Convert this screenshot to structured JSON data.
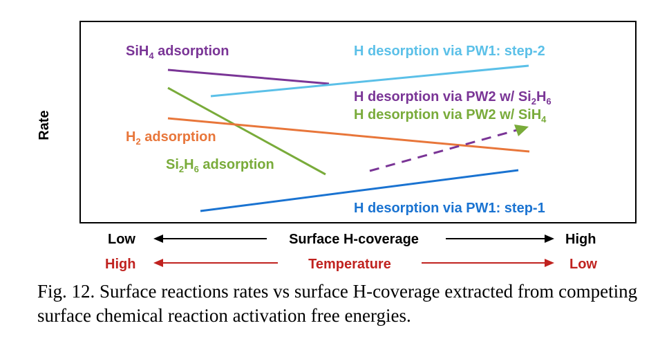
{
  "y_axis_label": "Rate",
  "lines": [
    {
      "id": "sih4-adsorption",
      "label_main": "SiH",
      "label_sub": "4",
      "label_tail": " adsorption",
      "color": "#7a3596",
      "dashed": false,
      "arrow": false
    },
    {
      "id": "h-desorption-pw1-step2",
      "label": "H desorption via PW1: step-2",
      "color": "#5bc0e8",
      "dashed": false,
      "arrow": false
    },
    {
      "id": "h-desorption-pw2-si2h6",
      "label_main": "H desorption via PW2 w/ Si",
      "label_sub": "2",
      "label_mid": "H",
      "label_sub2": "6",
      "color": "#7a3596",
      "dashed": true,
      "arrow": true
    },
    {
      "id": "h-desorption-pw2-sih4",
      "label_main": "H desorption via PW2 w/ SiH",
      "label_sub": "4",
      "color": "#79ab3a"
    },
    {
      "id": "h2-adsorption",
      "label_main": "H",
      "label_sub": "2",
      "label_tail": " adsorption",
      "color": "#e8763a",
      "dashed": false,
      "arrow": false
    },
    {
      "id": "si2h6-adsorption",
      "label_main": "Si",
      "label_sub": "2",
      "label_mid": "H",
      "label_sub2": "6",
      "label_tail": " adsorption",
      "color": "#79ab3a",
      "dashed": false,
      "arrow": false
    },
    {
      "id": "h-desorption-pw1-step1",
      "label": "H desorption via PW1: step-1",
      "color": "#1a73d1",
      "dashed": false,
      "arrow": false
    }
  ],
  "coverage_axis": {
    "label": "Surface H-coverage",
    "left": "Low",
    "right": "High",
    "color": "#000000"
  },
  "temperature_axis": {
    "label": "Temperature",
    "left": "High",
    "right": "Low",
    "color": "#c0221f"
  },
  "caption": "Fig. 12.  Surface reactions rates vs surface H-coverage extracted from competing surface chemical reaction activation free energies."
}
